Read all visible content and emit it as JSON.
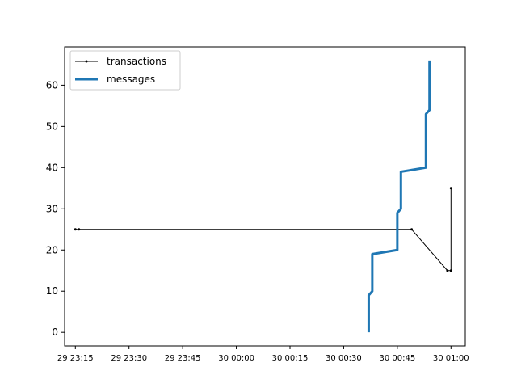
{
  "chart_data": {
    "type": "line",
    "title": "",
    "xlabel": "",
    "ylabel": "",
    "x_axis": {
      "kind": "time",
      "range": [
        "29 23:12",
        "30 01:04"
      ],
      "ticks": [
        {
          "t": "29 23:15",
          "label": "29 23:15"
        },
        {
          "t": "29 23:30",
          "label": "29 23:30"
        },
        {
          "t": "29 23:45",
          "label": "29 23:45"
        },
        {
          "t": "30 00:00",
          "label": "30 00:00"
        },
        {
          "t": "30 00:15",
          "label": "30 00:15"
        },
        {
          "t": "30 00:30",
          "label": "30 00:30"
        },
        {
          "t": "30 00:45",
          "label": "30 00:45"
        },
        {
          "t": "30 01:00",
          "label": "30 01:00"
        }
      ]
    },
    "y_axis": {
      "range": [
        -3.3,
        69.3
      ],
      "ticks": [
        0,
        10,
        20,
        30,
        40,
        50,
        60
      ]
    },
    "grid": false,
    "legend": {
      "position": "upper-left"
    },
    "series": [
      {
        "name": "transactions",
        "color": "#000000",
        "style": "thin-line-with-dot-markers",
        "points": [
          {
            "t": "29 23:15",
            "y": 25
          },
          {
            "t": "29 23:16",
            "y": 25
          },
          {
            "t": "30 00:49",
            "y": 25
          },
          {
            "t": "30 00:59",
            "y": 15
          },
          {
            "t": "30 01:00",
            "y": 15
          },
          {
            "t": "30 01:00",
            "y": 35
          }
        ]
      },
      {
        "name": "messages",
        "color": "#1f77b4",
        "style": "thick-line",
        "points": [
          {
            "t": "30 00:37",
            "y": 0
          },
          {
            "t": "30 00:37",
            "y": 9
          },
          {
            "t": "30 00:38",
            "y": 10
          },
          {
            "t": "30 00:38",
            "y": 19
          },
          {
            "t": "30 00:45",
            "y": 20
          },
          {
            "t": "30 00:45",
            "y": 29
          },
          {
            "t": "30 00:46",
            "y": 30
          },
          {
            "t": "30 00:46",
            "y": 39
          },
          {
            "t": "30 00:53",
            "y": 40
          },
          {
            "t": "30 00:53",
            "y": 53
          },
          {
            "t": "30 00:54",
            "y": 54
          },
          {
            "t": "30 00:54",
            "y": 66
          }
        ]
      }
    ]
  }
}
